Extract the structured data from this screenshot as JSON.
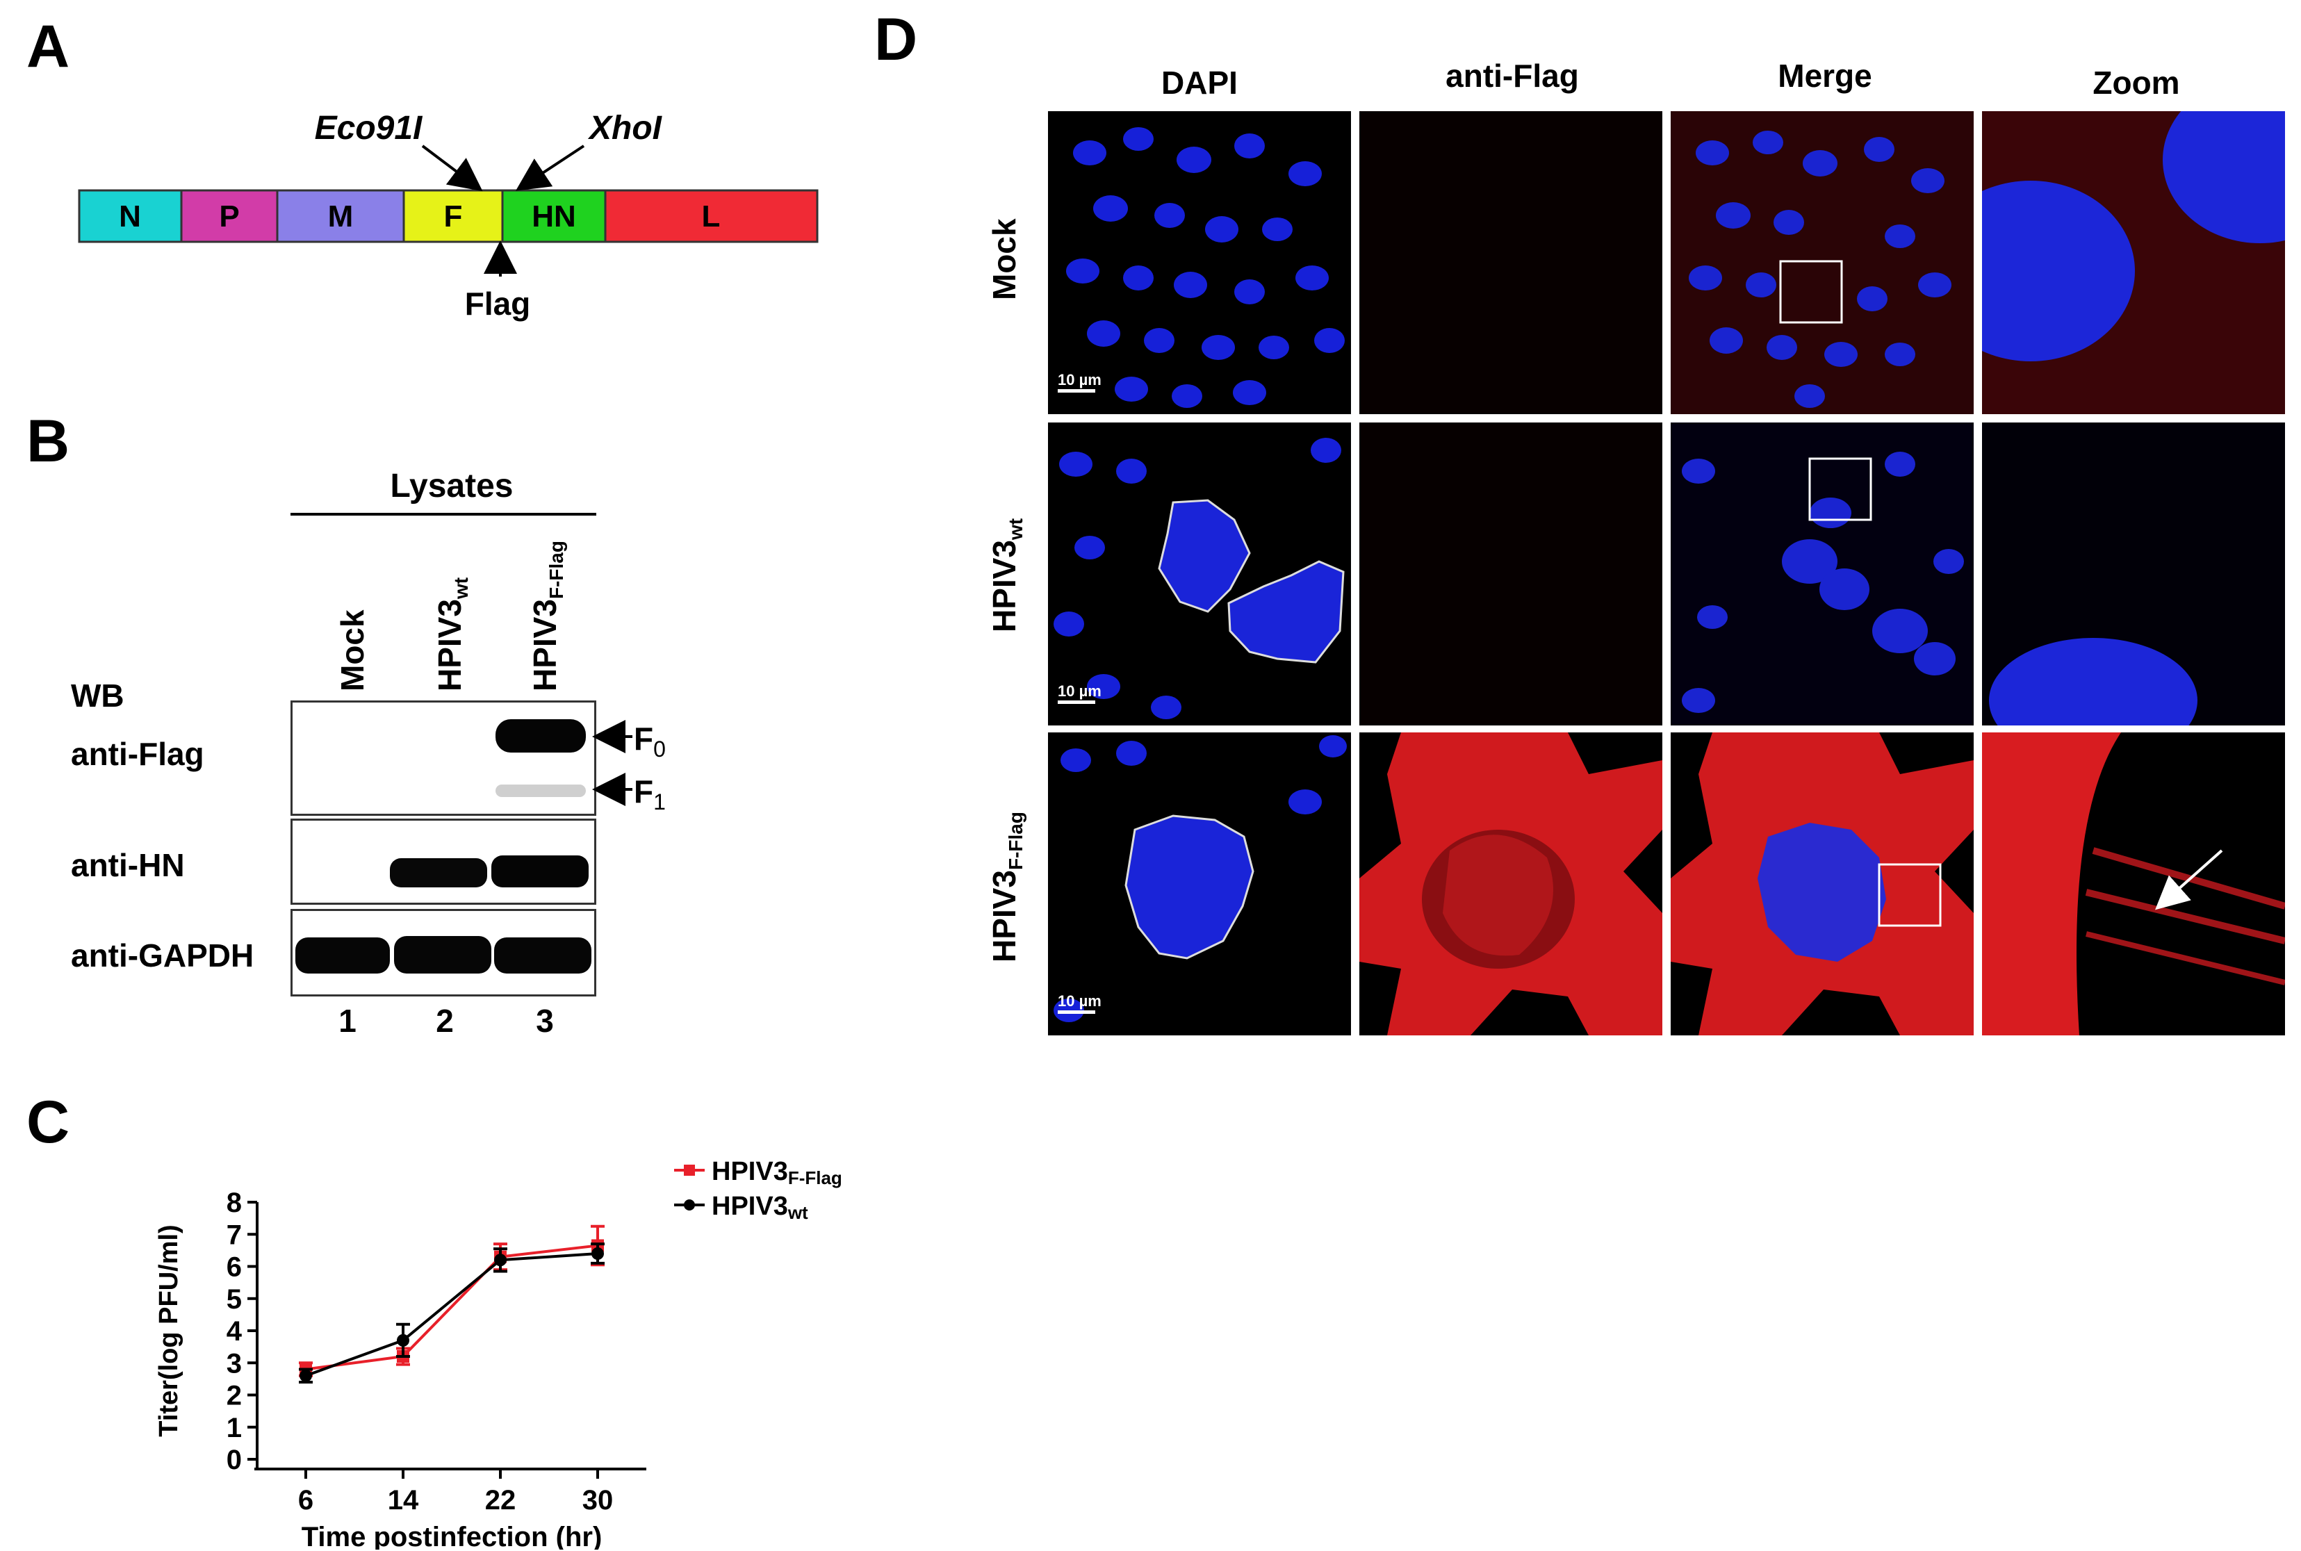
{
  "panels": {
    "A": "A",
    "B": "B",
    "C": "C",
    "D": "D"
  },
  "genome": {
    "segments": [
      {
        "label": "N",
        "color": "#19d2d2"
      },
      {
        "label": "P",
        "color": "#d23ca8"
      },
      {
        "label": "M",
        "color": "#8a80e8"
      },
      {
        "label": "F",
        "color": "#e6f218"
      },
      {
        "label": "HN",
        "color": "#1fd21f"
      },
      {
        "label": "L",
        "color": "#f02a35"
      }
    ],
    "site_left": "Eco91I",
    "site_right": "XhoI",
    "tag": "Flag"
  },
  "western": {
    "group_label": "Lysates",
    "wb_label": "WB",
    "lanes": [
      {
        "label": "Mock",
        "sub": ""
      },
      {
        "label": "HPIV3",
        "sub": "wt"
      },
      {
        "label": "HPIV3",
        "sub": "F-Flag"
      }
    ],
    "rows": [
      {
        "label": "anti-Flag"
      },
      {
        "label": "anti-HN"
      },
      {
        "label": "anti-GAPDH"
      }
    ],
    "bands": [
      {
        "name": "F",
        "sub": "0"
      },
      {
        "name": "F",
        "sub": "1"
      }
    ],
    "lane_numbers": [
      "1",
      "2",
      "3"
    ]
  },
  "chart_data": {
    "type": "line",
    "ylabel": "Titer(log PFU/ml)",
    "xlabel": "Time postinfection (hr)",
    "x": [
      6,
      14,
      22,
      30
    ],
    "x_ticks": [
      "6",
      "14",
      "22",
      "30"
    ],
    "y_ticks": [
      "0",
      "1",
      "2",
      "3",
      "4",
      "5",
      "6",
      "7",
      "8"
    ],
    "ylim": [
      0,
      8
    ],
    "xlim": [
      2,
      34
    ],
    "legend_position": "top-right",
    "series": [
      {
        "name": "HPIV3",
        "sub": "F-Flag",
        "color": "#e8202a",
        "marker": "square",
        "values": [
          2.8,
          3.2,
          6.3,
          6.65
        ],
        "err": [
          0.2,
          0.25,
          0.4,
          0.6
        ]
      },
      {
        "name": "HPIV3",
        "sub": "wt",
        "color": "#000000",
        "marker": "circle",
        "values": [
          2.6,
          3.7,
          6.2,
          6.4
        ],
        "err": [
          0.2,
          0.5,
          0.35,
          0.3
        ]
      }
    ]
  },
  "microscopy": {
    "columns": [
      "DAPI",
      "anti-Flag",
      "Merge",
      "Zoom"
    ],
    "rows": [
      {
        "label": "Mock",
        "sub": ""
      },
      {
        "label": "HPIV3",
        "sub": "wt"
      },
      {
        "label": "HPIV3",
        "sub": "F-Flag"
      }
    ],
    "scale_bar": "10 µm"
  }
}
